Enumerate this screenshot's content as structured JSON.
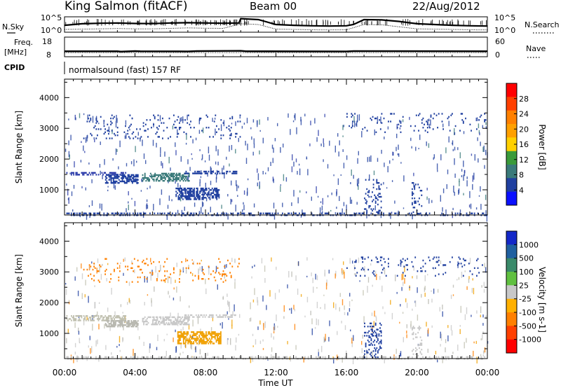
{
  "header": {
    "station": "King Salmon (fitACF)",
    "beam": "Beam 00",
    "date": "22/Aug/2012",
    "program": "normalsound (fast) 157 RF"
  },
  "chart_data": [
    {
      "id": "noise",
      "type": "line",
      "left_label": "N.Sky",
      "right_label": "N.Search",
      "left_ticks": [
        "10^5",
        "10^0"
      ],
      "right_ticks": [
        "10^5",
        "10^0"
      ],
      "series": [
        {
          "name": "N.Sky",
          "style": "solid",
          "x": [
            0,
            0.5,
            1,
            2,
            3,
            4,
            5,
            6,
            7,
            8,
            9,
            9.9,
            10,
            11,
            12,
            13,
            14,
            15,
            16,
            16.4,
            17,
            18,
            19,
            20,
            21,
            22,
            23,
            24
          ],
          "y": [
            0.45,
            0.5,
            0.55,
            0.58,
            0.6,
            0.57,
            0.56,
            0.6,
            0.62,
            0.6,
            0.58,
            0.6,
            0.88,
            0.82,
            0.5,
            0.45,
            0.42,
            0.4,
            0.42,
            0.5,
            0.82,
            0.8,
            0.7,
            0.55,
            0.5,
            0.45,
            0.42,
            0.4
          ]
        },
        {
          "name": "N.Search",
          "style": "dotted",
          "x": [
            0,
            1,
            2,
            3,
            4,
            5,
            6,
            7,
            8,
            9,
            10,
            11,
            12,
            13,
            14,
            15,
            16,
            17,
            18,
            19,
            20,
            21,
            22,
            23,
            24
          ],
          "y": [
            0.18,
            0.2,
            0.22,
            0.24,
            0.22,
            0.22,
            0.25,
            0.28,
            0.26,
            0.25,
            0.55,
            0.5,
            0.2,
            0.18,
            0.16,
            0.15,
            0.16,
            0.5,
            0.48,
            0.35,
            0.22,
            0.2,
            0.18,
            0.16,
            0.15
          ]
        }
      ]
    },
    {
      "id": "freq",
      "type": "line",
      "left_label": "Freq.",
      "left_unit": "[MHz]",
      "right_label": "Nave",
      "left_ticks": [
        "18",
        "8"
      ],
      "right_ticks": [
        "60",
        "0"
      ],
      "series": [
        {
          "name": "Freq",
          "style": "solid",
          "x": [
            0,
            3,
            3.2,
            4,
            4.3,
            7,
            7.5,
            10,
            10.3,
            16,
            16.4,
            24
          ],
          "y": [
            10.8,
            10.8,
            10.6,
            10.9,
            10.8,
            10.7,
            10.9,
            11.0,
            10.8,
            10.7,
            10.9,
            10.8
          ]
        },
        {
          "name": "Nave",
          "style": "dotted",
          "x": [
            0,
            24
          ],
          "y": [
            0.55,
            0.55
          ]
        }
      ]
    },
    {
      "id": "cpid",
      "type": "line",
      "left_label": "CPID"
    },
    {
      "id": "power",
      "type": "heatmap",
      "ylabel": "Slant Range [km]",
      "y_ticks": [
        1000,
        2000,
        3000,
        4000
      ],
      "ylim": [
        180,
        4600
      ],
      "colorbar_label": "Power [dB]",
      "colorbar_ticks": [
        "28",
        "24",
        "20",
        "16",
        "12",
        "8",
        "4"
      ],
      "colorbar_colors": [
        "#ff0000",
        "#ff4000",
        "#ff8000",
        "#ffa000",
        "#ffd000",
        "#3a9a3a",
        "#3a7a7a",
        "#2040a0",
        "#0a10ff"
      ],
      "patches": [
        {
          "x0": 0.1,
          "x1": 3.5,
          "y0": 1520,
          "y1": 1640,
          "color": "#2838a8",
          "density": 0.5
        },
        {
          "x0": 2.3,
          "x1": 4.2,
          "y0": 1250,
          "y1": 1560,
          "color": "#2040a0",
          "density": 0.6
        },
        {
          "x0": 4.4,
          "x1": 7.1,
          "y0": 1320,
          "y1": 1600,
          "color": "#3a7a7a",
          "density": 0.55
        },
        {
          "x0": 6.8,
          "x1": 9.8,
          "y0": 1560,
          "y1": 1680,
          "color": "#2040a0",
          "density": 0.6
        },
        {
          "x0": 6.3,
          "x1": 8.8,
          "y0": 720,
          "y1": 1120,
          "color": "#2040a0",
          "density": 0.55
        },
        {
          "x0": 0.1,
          "x1": 24,
          "y0": 200,
          "y1": 320,
          "color": "#2040a0",
          "density": 0.35
        },
        {
          "x0": 17.0,
          "x1": 18.0,
          "y0": 250,
          "y1": 1400,
          "color": "#2040a0",
          "density": 0.2
        },
        {
          "x0": 19.7,
          "x1": 20.3,
          "y0": 250,
          "y1": 1300,
          "color": "#2040a0",
          "density": 0.2
        },
        {
          "x0": 1.0,
          "x1": 10.0,
          "y0": 2700,
          "y1": 3500,
          "color": "#2040a0",
          "density": 0.06
        },
        {
          "x0": 16.0,
          "x1": 24.0,
          "y0": 2900,
          "y1": 3550,
          "color": "#2040a0",
          "density": 0.05
        }
      ]
    },
    {
      "id": "velocity",
      "type": "heatmap",
      "ylabel": "Slant Range [km]",
      "xlabel": "Time UT",
      "x_ticks": [
        "00:00",
        "04:00",
        "08:00",
        "12:00",
        "16:00",
        "20:00",
        "00:00"
      ],
      "y_ticks": [
        1000,
        2000,
        3000,
        4000
      ],
      "ylim": [
        180,
        4600
      ],
      "colorbar_label": "Velocity [m s-1]",
      "colorbar_ticks": [
        "1000",
        "500",
        "100",
        "25",
        "-25",
        "-100",
        "-500",
        "-1000"
      ],
      "colorbar_colors": [
        "#1428c8",
        "#2060a0",
        "#3a8a6a",
        "#60c040",
        "#c8c8c8",
        "#ffb000",
        "#ff8000",
        "#ff4000",
        "#ff0000"
      ],
      "patches": [
        {
          "x0": 0.1,
          "x1": 3.5,
          "y0": 1450,
          "y1": 1640,
          "color": "#c0c0b0",
          "density": 0.5
        },
        {
          "x0": 2.3,
          "x1": 4.2,
          "y0": 1250,
          "y1": 1480,
          "color": "#b8b8b0",
          "density": 0.6
        },
        {
          "x0": 4.4,
          "x1": 7.1,
          "y0": 1320,
          "y1": 1600,
          "color": "#c8c8c8",
          "density": 0.55
        },
        {
          "x0": 6.8,
          "x1": 9.8,
          "y0": 1560,
          "y1": 1680,
          "color": "#c8c8c8",
          "density": 0.5
        },
        {
          "x0": 6.4,
          "x1": 8.9,
          "y0": 700,
          "y1": 1120,
          "color": "#f0a000",
          "density": 0.65
        },
        {
          "x0": 0.1,
          "x1": 24,
          "y0": 200,
          "y1": 320,
          "color": "#c8c8c8",
          "density": 0.3
        },
        {
          "x0": 17.0,
          "x1": 18.0,
          "y0": 250,
          "y1": 1400,
          "color": "#2040a0",
          "density": 0.2
        },
        {
          "x0": 19.7,
          "x1": 20.3,
          "y0": 250,
          "y1": 1300,
          "color": "#c8c8c8",
          "density": 0.2
        },
        {
          "x0": 1.0,
          "x1": 10.0,
          "y0": 2700,
          "y1": 3500,
          "color": "#ff8000",
          "density": 0.06
        },
        {
          "x0": 16.0,
          "x1": 24.0,
          "y0": 2900,
          "y1": 3550,
          "color": "#2040a0",
          "density": 0.05
        }
      ]
    }
  ]
}
